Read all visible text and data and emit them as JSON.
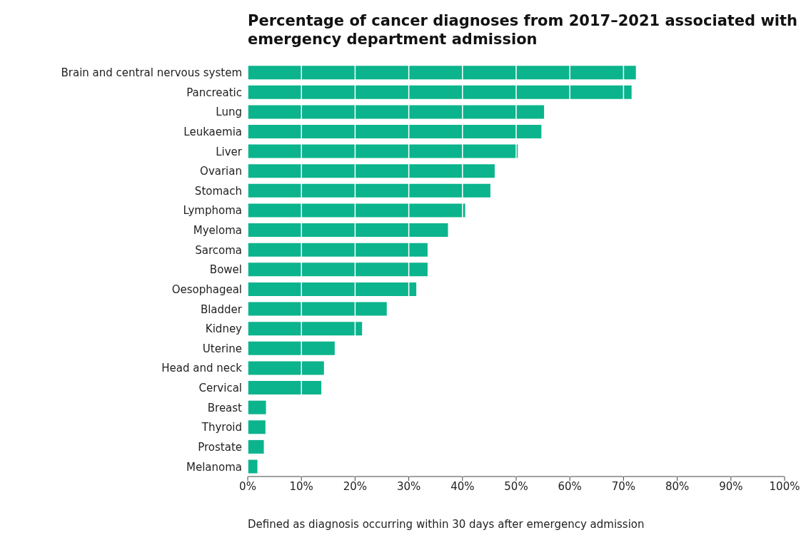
{
  "chart_data": {
    "type": "bar",
    "orientation": "horizontal",
    "title": "Percentage of cancer diagnoses from 2017–2021 associated with emergency department admission",
    "categories": [
      "Brain and central nervous system",
      "Pancreatic",
      "Lung",
      "Leukaemia",
      "Liver",
      "Ovarian",
      "Stomach",
      "Lymphoma",
      "Myeloma",
      "Sarcoma",
      "Bowel",
      "Oesophageal",
      "Bladder",
      "Kidney",
      "Uterine",
      "Head and neck",
      "Cervical",
      "Breast",
      "Thyroid",
      "Prostate",
      "Melanoma"
    ],
    "values": [
      72.3,
      71.5,
      55.2,
      54.7,
      50.3,
      46.0,
      45.2,
      40.5,
      37.3,
      33.5,
      33.5,
      31.4,
      25.9,
      21.3,
      16.2,
      14.2,
      13.7,
      3.4,
      3.3,
      3.0,
      1.8
    ],
    "color": "#0bb48c",
    "xlim": [
      0,
      100
    ],
    "xticks": [
      {
        "value": 0,
        "label": "0%"
      },
      {
        "value": 10,
        "label": "10%"
      },
      {
        "value": 20,
        "label": "20%"
      },
      {
        "value": 30,
        "label": "30%"
      },
      {
        "value": 40,
        "label": "40%"
      },
      {
        "value": 50,
        "label": "50%"
      },
      {
        "value": 60,
        "label": "60%"
      },
      {
        "value": 70,
        "label": "70%"
      },
      {
        "value": 80,
        "label": "80%"
      },
      {
        "value": 90,
        "label": "90%"
      },
      {
        "value": 100,
        "label": "100%"
      }
    ],
    "grid": "x",
    "annotations": [
      "Defined as diagnosis occurring within 30 days after emergency admission"
    ]
  }
}
